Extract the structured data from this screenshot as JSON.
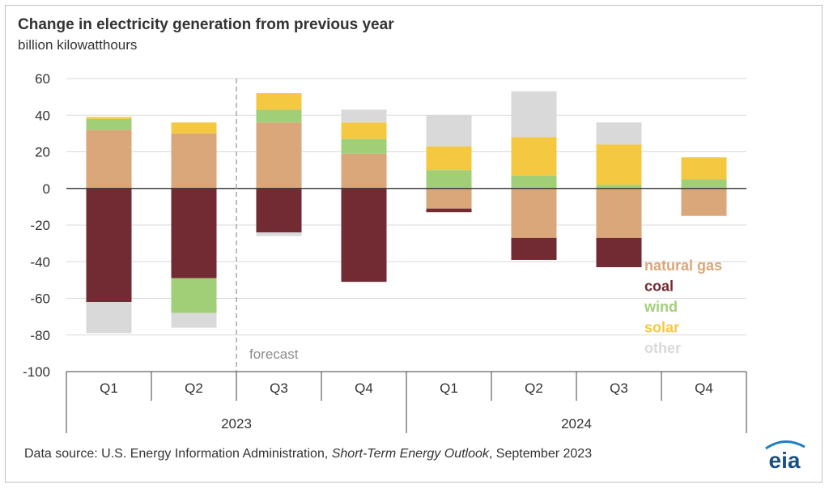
{
  "title": "Change in electricity  generation from previous year",
  "subtitle": "billion kilowatthours",
  "source": {
    "prefix": "Data source: U.S. Energy Information Administration, ",
    "italic": "Short-Term Energy Outlook",
    "suffix": ", September 2023"
  },
  "annotation": "forecast",
  "logo_text": "eia",
  "colors": {
    "natural gas": "#d9a77a",
    "coal": "#722a33",
    "wind": "#a1cf78",
    "solar": "#f5c842",
    "other": "#d9d9d9"
  },
  "chart_data": {
    "type": "bar",
    "stacked": true,
    "title": "Change in electricity  generation from previous year",
    "ylabel": "billion kilowatthours",
    "ylim": [
      -100,
      60
    ],
    "yticks": [
      60,
      40,
      20,
      0,
      -20,
      -40,
      -60,
      -80,
      -100
    ],
    "grid": true,
    "legend": "right, inside plot",
    "categories": [
      "Q1",
      "Q2",
      "Q3",
      "Q4",
      "Q1",
      "Q2",
      "Q3",
      "Q4"
    ],
    "groups": [
      {
        "label": "2023",
        "span": 4
      },
      {
        "label": "2024",
        "span": 4
      }
    ],
    "forecast_starts_after_index": 1,
    "series": [
      {
        "name": "natural gas",
        "values": [
          32,
          30,
          36,
          19,
          -11,
          -27,
          -27,
          -15
        ]
      },
      {
        "name": "coal",
        "values": [
          -62,
          -49,
          -24,
          -51,
          -2,
          -12,
          -16,
          0
        ]
      },
      {
        "name": "wind",
        "values": [
          6,
          -19,
          7,
          8,
          10,
          7,
          2,
          5
        ]
      },
      {
        "name": "solar",
        "values": [
          1,
          6,
          9,
          9,
          13,
          21,
          22,
          12
        ]
      },
      {
        "name": "other",
        "values": [
          -17,
          -8,
          -2,
          7,
          17,
          25,
          12,
          0
        ]
      }
    ]
  }
}
